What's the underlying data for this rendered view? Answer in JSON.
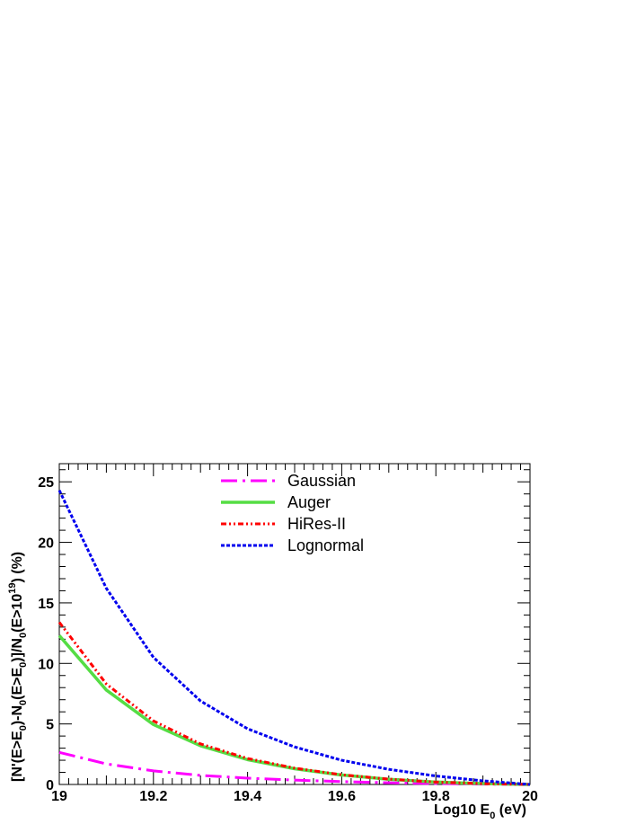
{
  "chart_data": {
    "type": "line",
    "xlabel": "Log10 E",
    "xlabel_sub": "0",
    "xlabel_unit": " (eV)",
    "ylabel_parts": [
      "[N'(E>E",
      "0",
      ")-N",
      "0",
      "(E>E",
      "0",
      ")]/N",
      "0",
      "(E>10",
      "19",
      ")  (%)"
    ],
    "xlim": [
      19,
      20
    ],
    "ylim": [
      0,
      26.5
    ],
    "x_ticks": [
      19,
      19.2,
      19.4,
      19.6,
      19.8,
      20
    ],
    "x_tick_labels": [
      "19",
      "19.2",
      "19.4",
      "19.6",
      "19.8",
      "20"
    ],
    "y_ticks": [
      0,
      5,
      10,
      15,
      20,
      25
    ],
    "y_tick_labels": [
      "0",
      "5",
      "10",
      "15",
      "20",
      "25"
    ],
    "grid": false,
    "legend_position": "top-center",
    "series": [
      {
        "name": "Gaussian",
        "color": "#ff00ff",
        "style": "dash-dot",
        "x": [
          19.0,
          19.1,
          19.2,
          19.3,
          19.4,
          19.5,
          19.6,
          19.7,
          19.8,
          19.9,
          20.0
        ],
        "y": [
          2.65,
          1.7,
          1.12,
          0.75,
          0.52,
          0.36,
          0.24,
          0.14,
          0.07,
          0.03,
          0.0
        ]
      },
      {
        "name": "Auger",
        "color": "#55dd44",
        "style": "solid",
        "x": [
          19.0,
          19.1,
          19.2,
          19.3,
          19.4,
          19.5,
          19.6,
          19.7,
          19.8,
          19.9,
          20.0
        ],
        "y": [
          12.3,
          7.8,
          4.95,
          3.2,
          2.05,
          1.3,
          0.78,
          0.43,
          0.2,
          0.07,
          0.0
        ]
      },
      {
        "name": "HiRes-II",
        "color": "#ff0000",
        "style": "dash-dot-dot",
        "x": [
          19.0,
          19.1,
          19.2,
          19.3,
          19.4,
          19.5,
          19.6,
          19.7,
          19.8,
          19.9,
          20.0
        ],
        "y": [
          13.4,
          8.3,
          5.25,
          3.35,
          2.15,
          1.35,
          0.8,
          0.44,
          0.2,
          0.07,
          0.0
        ]
      },
      {
        "name": "Lognormal",
        "color": "#0000ee",
        "style": "dotted",
        "x": [
          19.0,
          19.1,
          19.2,
          19.3,
          19.4,
          19.5,
          19.6,
          19.7,
          19.8,
          19.9,
          20.0
        ],
        "y": [
          24.3,
          16.2,
          10.5,
          6.9,
          4.6,
          3.1,
          2.0,
          1.25,
          0.7,
          0.3,
          0.0
        ]
      }
    ]
  }
}
